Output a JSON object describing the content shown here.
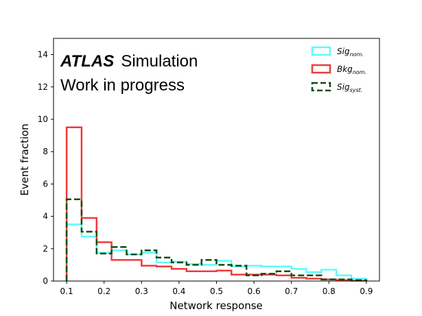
{
  "chart_data": {
    "type": "histogram",
    "xlabel": "Network response",
    "ylabel": "Event fraction",
    "xlim": [
      0.065,
      0.935
    ],
    "ylim": [
      0,
      15
    ],
    "xticks": [
      0.1,
      0.2,
      0.3,
      0.4,
      0.5,
      0.6,
      0.7,
      0.8,
      0.9
    ],
    "yticks": [
      0,
      2,
      4,
      6,
      8,
      10,
      12,
      14
    ],
    "grid": false,
    "legend_position": "top-right",
    "annotation": {
      "brand": "ATLAS",
      "line1": "Simulation",
      "line2": "Work in progress"
    },
    "bin_edges": [
      0.1,
      0.14,
      0.18,
      0.22,
      0.26,
      0.3,
      0.34,
      0.38,
      0.42,
      0.46,
      0.5,
      0.54,
      0.58,
      0.62,
      0.66,
      0.7,
      0.74,
      0.78,
      0.82,
      0.86,
      0.9
    ],
    "series": [
      {
        "name": "Sig",
        "subscript": "nom.",
        "color": "#5ffaff",
        "style": "solid",
        "values": [
          3.5,
          2.75,
          1.75,
          1.9,
          1.65,
          1.75,
          1.15,
          1.2,
          1.05,
          1.0,
          1.25,
          0.9,
          0.95,
          0.9,
          0.9,
          0.75,
          0.55,
          0.7,
          0.35,
          0.15
        ]
      },
      {
        "name": "Bkg",
        "subscript": "nom.",
        "color": "#ee3b3b",
        "style": "solid",
        "values": [
          9.5,
          3.9,
          2.4,
          1.3,
          1.3,
          0.95,
          0.9,
          0.75,
          0.6,
          0.6,
          0.65,
          0.4,
          0.4,
          0.4,
          0.35,
          0.2,
          0.15,
          0.1,
          0.05,
          0.02
        ]
      },
      {
        "name": "Sig",
        "subscript": "syst.",
        "color": "#0d4d0d",
        "style": "dashed",
        "values": [
          5.05,
          3.05,
          1.7,
          2.1,
          1.65,
          1.9,
          1.45,
          1.15,
          1.0,
          1.3,
          1.0,
          0.95,
          0.35,
          0.45,
          0.6,
          0.35,
          0.35,
          0.1,
          0.1,
          0.05
        ]
      }
    ]
  }
}
